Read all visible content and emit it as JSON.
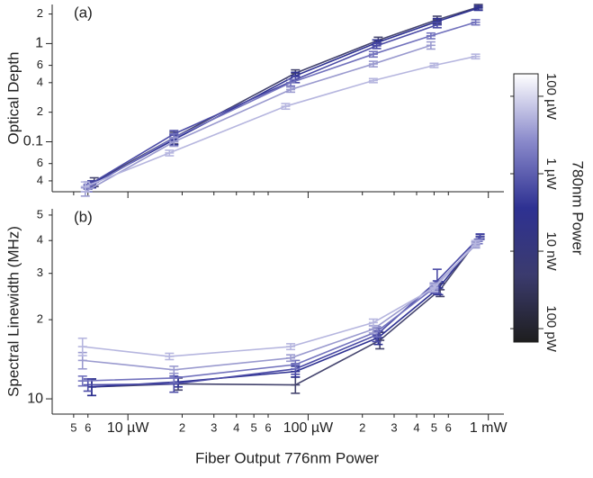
{
  "chart_data": [
    {
      "type": "line",
      "panel": "(a)",
      "ylabel": "Optical Depth",
      "log_x": true,
      "log_y": true,
      "xlim": [
        3.8,
        1220
      ],
      "ylim": [
        0.031,
        2.5
      ],
      "yticks": [
        {
          "value": 0.04,
          "label": "4"
        },
        {
          "value": 0.06,
          "label": "6"
        },
        0.1,
        {
          "value": 0.2,
          "label": "2"
        },
        {
          "value": 0.4,
          "label": "4"
        },
        {
          "value": 0.6,
          "label": "6"
        },
        1,
        2
      ],
      "series": [
        {
          "color": "#44446e",
          "x": [
            6.5,
            18,
            85,
            245,
            520,
            880
          ],
          "values": [
            0.039,
            0.11,
            0.5,
            1.08,
            1.75,
            2.35
          ],
          "errors": [
            0.004,
            0.015,
            0.04,
            0.08,
            0.15,
            0.15
          ]
        },
        {
          "color": "#2e3192",
          "x": [
            6.3,
            18,
            85,
            240,
            520,
            880
          ],
          "values": [
            0.037,
            0.105,
            0.47,
            1.02,
            1.68,
            2.3
          ],
          "errors": [
            0.003,
            0.012,
            0.04,
            0.07,
            0.12,
            0.12
          ]
        },
        {
          "color": "#4b4ba6",
          "x": [
            6,
            18,
            85,
            240,
            520
          ],
          "values": [
            0.036,
            0.12,
            0.43,
            0.95,
            1.55
          ],
          "errors": [
            0.003,
            0.01,
            0.03,
            0.06,
            0.1
          ]
        },
        {
          "color": "#7272bd",
          "x": [
            6,
            18,
            80,
            230,
            480,
            850
          ],
          "values": [
            0.034,
            0.11,
            0.4,
            0.78,
            1.2,
            1.65
          ],
          "errors": [
            0.003,
            0.01,
            0.03,
            0.05,
            0.08,
            0.1
          ]
        },
        {
          "color": "#9a9acf",
          "x": [
            5.8,
            18,
            80,
            230,
            480
          ],
          "values": [
            0.031,
            0.1,
            0.34,
            0.62,
            0.96
          ],
          "errors": [
            0.003,
            0.01,
            0.02,
            0.04,
            0.08
          ]
        },
        {
          "color": "#b6b6df",
          "x": [
            5.8,
            17,
            75,
            230,
            500,
            850
          ],
          "values": [
            0.035,
            0.077,
            0.23,
            0.42,
            0.6,
            0.74
          ],
          "errors": [
            0.004,
            0.005,
            0.015,
            0.02,
            0.03,
            0.04
          ]
        }
      ]
    },
    {
      "type": "line",
      "panel": "(b)",
      "ylabel": "Spectral Linewidth (MHz)",
      "xlabel": "Fiber Output 776nm Power",
      "log_x": true,
      "log_y": true,
      "xlim": [
        3.8,
        1220
      ],
      "ylim": [
        8.75,
        52.8
      ],
      "xticks": [
        {
          "value": 5,
          "label": "5"
        },
        {
          "value": 6,
          "label": "6"
        },
        {
          "value": 10,
          "label": "10 µW"
        },
        {
          "value": 20,
          "label": "2"
        },
        {
          "value": 30,
          "label": "3"
        },
        {
          "value": 40,
          "label": "4"
        },
        {
          "value": 50,
          "label": "5"
        },
        {
          "value": 60,
          "label": "6"
        },
        {
          "value": 100,
          "label": "100 µW"
        },
        {
          "value": 200,
          "label": "2"
        },
        {
          "value": 300,
          "label": "3"
        },
        {
          "value": 400,
          "label": "4"
        },
        {
          "value": 500,
          "label": "5"
        },
        {
          "value": 600,
          "label": "6"
        },
        {
          "value": 1000,
          "label": "1 mW"
        }
      ],
      "yticks": [
        10,
        {
          "value": 20,
          "label": "2"
        },
        {
          "value": 30,
          "label": "3"
        },
        {
          "value": 40,
          "label": "4"
        },
        {
          "value": 50,
          "label": "5"
        }
      ],
      "series": [
        {
          "color": "#44446e",
          "x": [
            6.3,
            19,
            85,
            250,
            540,
            900
          ],
          "values": [
            11.1,
            11.4,
            11.3,
            16.7,
            26,
            41.4
          ],
          "errors": [
            0.8,
            0.6,
            0.8,
            1.2,
            1.5,
            0.8
          ]
        },
        {
          "color": "#2e3192",
          "x": [
            6.3,
            19,
            85,
            245,
            530,
            900
          ],
          "values": [
            11.1,
            11.6,
            12.7,
            17.1,
            26.4,
            41.4
          ],
          "errors": [
            0.8,
            0.5,
            0.6,
            1,
            1.5,
            0.8
          ]
        },
        {
          "color": "#4b4ba6",
          "x": [
            6,
            18,
            85,
            240,
            520,
            900
          ],
          "values": [
            11.3,
            11.4,
            13,
            17.5,
            28.1,
            41.4
          ],
          "errors": [
            0.6,
            0.8,
            0.6,
            1,
            3,
            1
          ]
        },
        {
          "color": "#7272bd",
          "x": [
            5.6,
            18,
            85,
            240,
            500,
            880
          ],
          "values": [
            11.7,
            12,
            13.5,
            18,
            26.4,
            39.7
          ],
          "errors": [
            0.5,
            0.5,
            0.5,
            0.8,
            1,
            0.8
          ]
        },
        {
          "color": "#9a9acf",
          "x": [
            5.6,
            18,
            80,
            230,
            500,
            850
          ],
          "values": [
            14,
            12.9,
            14.3,
            18.4,
            26.8,
            38.5
          ],
          "errors": [
            1,
            0.4,
            0.4,
            0.6,
            0.8,
            1
          ]
        },
        {
          "color": "#b6b6df",
          "x": [
            5.6,
            17,
            80,
            230,
            500,
            850
          ],
          "values": [
            15.8,
            14.5,
            15.8,
            19.5,
            26.4,
            39
          ],
          "errors": [
            1.2,
            0.4,
            0.4,
            0.6,
            0.8,
            1
          ]
        }
      ]
    }
  ],
  "colorbar": {
    "title": "780nm Power",
    "log": true,
    "lim": [
      4.5e-11,
      0.00038
    ],
    "ticks": [
      {
        "value": 0.0001,
        "label": "100 µW"
      },
      {
        "value": 1e-06,
        "label": "1 µW"
      },
      {
        "value": 1e-08,
        "label": "10 nW"
      },
      {
        "value": 1e-10,
        "label": "100 pW"
      }
    ],
    "colors": [
      "#1e1e1e",
      "#3b3b6e",
      "#2e3192",
      "#8a8acb",
      "#ffffff"
    ]
  }
}
